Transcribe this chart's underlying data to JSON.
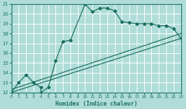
{
  "xlabel": "Humidex (Indice chaleur)",
  "xlim": [
    0,
    23
  ],
  "ylim": [
    12,
    21
  ],
  "xtick_vals": [
    0,
    1,
    2,
    3,
    4,
    5,
    6,
    7,
    8,
    9,
    10,
    11,
    12,
    13,
    14,
    15,
    16,
    17,
    18,
    19,
    20,
    21,
    22,
    23
  ],
  "ytick_vals": [
    12,
    13,
    14,
    15,
    16,
    17,
    18,
    19,
    20,
    21
  ],
  "bg_color": "#b0ddd8",
  "grid_color": "#ffffff",
  "line_color": "#1a7060",
  "main_x": [
    0,
    1,
    2,
    3,
    4,
    4,
    5,
    6,
    7,
    8,
    10,
    11,
    12,
    13,
    14,
    15,
    16,
    17,
    18,
    19,
    20,
    21,
    22,
    23
  ],
  "main_y": [
    12,
    13,
    13.8,
    13,
    12.5,
    12,
    12.5,
    15.2,
    17.2,
    17.3,
    21.0,
    20.2,
    20.6,
    20.6,
    20.3,
    19.2,
    19.1,
    19.0,
    19.0,
    19.0,
    18.8,
    18.8,
    18.5,
    17.5
  ],
  "line2_x": [
    0,
    23
  ],
  "line2_y": [
    12.0,
    17.5
  ],
  "line3_x": [
    0,
    23
  ],
  "line3_y": [
    12.0,
    17.5
  ],
  "lw": 0.9,
  "ms": 2.2
}
